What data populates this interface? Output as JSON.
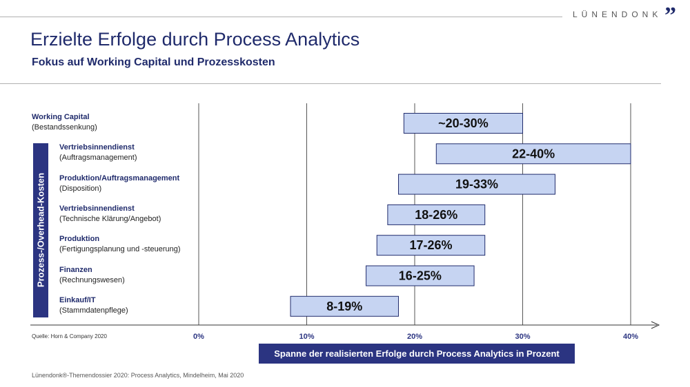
{
  "brand": {
    "name": "LÜNENDONK",
    "quote_mark": "”"
  },
  "header": {
    "title": "Erzielte Erfolge durch Process Analytics",
    "subtitle": "Fokus auf Working Capital und Prozesskosten"
  },
  "side_label": "Prozess-/Overhead-Kosten",
  "source": "Quelle: Horn & Company 2020",
  "footer": "Lünendonk®-Themendossier  2020: Process Analytics, Mindelheim, Mai 2020",
  "colors": {
    "bar_fill": "#c6d4f2",
    "bar_stroke": "#1f2a6b",
    "accent": "#2b3481",
    "axis": "#333333"
  },
  "chart_data": {
    "type": "bar",
    "orientation": "horizontal-range",
    "title": "Erzielte Erfolge durch Process Analytics",
    "subtitle": "Fokus auf Working Capital und Prozesskosten",
    "xlabel": "Spanne der realisierten Erfolge durch Process Analytics in Prozent",
    "xlim": [
      0,
      40
    ],
    "x_ticks": [
      0,
      10,
      20,
      30,
      40
    ],
    "x_tick_labels": [
      "0%",
      "10%",
      "20%",
      "30%",
      "40%"
    ],
    "grid": "vertical",
    "categories": [
      {
        "name": "Working Capital",
        "sub": "(Bestandssenkung)",
        "low": 19,
        "high": 30,
        "label": "~20-30%"
      },
      {
        "name": "Vertriebsinnendienst",
        "sub": "(Auftragsmanagement)",
        "low": 22,
        "high": 40,
        "label": "22-40%"
      },
      {
        "name": "Produktion/Auftragsmanagement",
        "sub": "(Disposition)",
        "low": 18.5,
        "high": 33,
        "label": "19-33%"
      },
      {
        "name": "Vertriebsinnendienst",
        "sub": "(Technische Klärung/Angebot)",
        "low": 17.5,
        "high": 26.5,
        "label": "18-26%"
      },
      {
        "name": "Produktion",
        "sub": "(Fertigungsplanung und -steuerung)",
        "low": 16.5,
        "high": 26.5,
        "label": "17-26%"
      },
      {
        "name": "Finanzen",
        "sub": "(Rechnungswesen)",
        "low": 15.5,
        "high": 25.5,
        "label": "16-25%"
      },
      {
        "name": "Einkauf/IT",
        "sub": "(Stammdatenpflege)",
        "low": 8.5,
        "high": 18.5,
        "label": "8-19%"
      }
    ]
  }
}
